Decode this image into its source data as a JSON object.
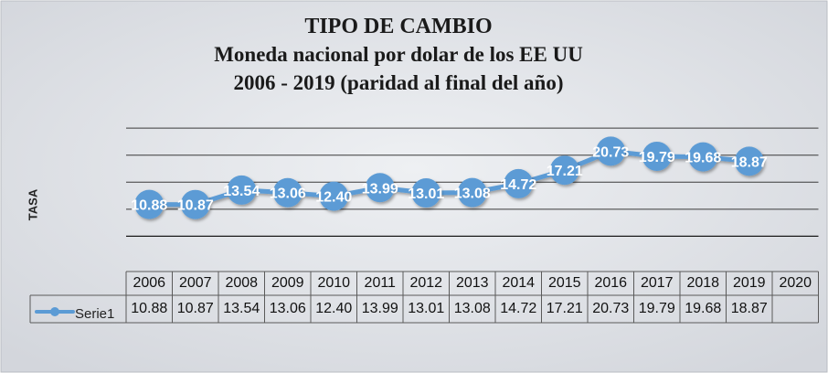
{
  "chart_data": {
    "type": "line",
    "title": "TIPO DE CAMBIO",
    "subtitle": "Moneda nacional por dolar de los EE UU",
    "subtitle2": "2006 - 2019 (paridad al final del año)",
    "xlabel": "",
    "ylabel": "TASA",
    "categories": [
      "2006",
      "2007",
      "2008",
      "2009",
      "2010",
      "2011",
      "2012",
      "2013",
      "2014",
      "2015",
      "2016",
      "2017",
      "2018",
      "2019",
      "2020"
    ],
    "series": [
      {
        "name": "Serie1",
        "values": [
          10.88,
          10.87,
          13.54,
          13.06,
          12.4,
          13.99,
          13.01,
          13.08,
          14.72,
          17.21,
          20.73,
          19.79,
          19.68,
          18.87,
          null
        ],
        "labels": [
          "10.88",
          "10.87",
          "13.54",
          "13.06",
          "12.40",
          "13.99",
          "13.01",
          "13.08",
          "14.72",
          "17.21",
          "20.73",
          "19.79",
          "19.68",
          "18.87",
          ""
        ]
      }
    ],
    "ylim": [
      5,
      30
    ],
    "grid": true,
    "legend": "data-table",
    "colors": {
      "series": "#5b9bd5",
      "marker": "#5b9bd5",
      "label": "#ffffff",
      "background": "#d3d6dc",
      "grid": "#3a3a3a"
    }
  }
}
